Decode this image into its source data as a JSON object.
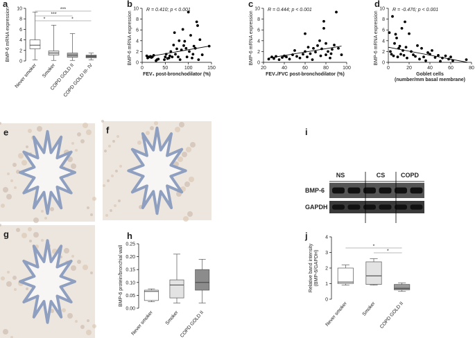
{
  "chart_data": [
    {
      "type": "box",
      "panel": "a",
      "ylabel": "BMP-6 mRNA expression",
      "categories": [
        "Never smoker",
        "Smoker",
        "COPD GOLD II",
        "COPD GOLD III- IV"
      ],
      "boxes": [
        {
          "min": 0.2,
          "q1": 2.3,
          "median": 3.0,
          "q3": 4.0,
          "max": 9.3
        },
        {
          "min": 0.1,
          "q1": 1.1,
          "median": 1.5,
          "q3": 1.9,
          "max": 6.8
        },
        {
          "min": 0.1,
          "q1": 0.7,
          "median": 1.1,
          "q3": 1.5,
          "max": 5.2
        },
        {
          "min": 0.2,
          "q1": 0.6,
          "median": 0.9,
          "q3": 1.1,
          "max": 1.5
        }
      ],
      "colors": [
        "#ffffff",
        "#e3e3e3",
        "#b0b0b0",
        "#7a7a7a"
      ],
      "ylim": [
        0,
        10
      ],
      "yticks": [
        0,
        2,
        4,
        6,
        8,
        10
      ],
      "annotations": [
        {
          "text": "***",
          "from": 0,
          "to": 3
        },
        {
          "text": "***",
          "from": 0,
          "to": 2
        },
        {
          "text": "*",
          "from": 0,
          "to": 1
        },
        {
          "text": "*",
          "from": 1,
          "to": 3
        }
      ]
    },
    {
      "type": "scatter",
      "panel": "b",
      "annotation": "R = 0.410; p < 0.001",
      "ylabel": "BMP-6 mRNA expression",
      "xlabel": "FEV₁ post-bronchodilator (%)",
      "color": "#000000",
      "x": [
        10,
        12,
        15,
        18,
        20,
        22,
        25,
        30,
        32,
        35,
        48,
        50,
        52,
        55,
        58,
        60,
        62,
        65,
        68,
        70,
        72,
        75,
        78,
        80,
        82,
        85,
        88,
        90,
        92,
        95,
        97,
        100,
        102,
        105,
        108,
        110,
        112,
        115,
        118,
        120,
        122,
        125,
        130,
        145
      ],
      "values": [
        1.2,
        0.8,
        1.0,
        1.1,
        0.9,
        1.0,
        1.3,
        0.3,
        0.5,
        0.6,
        0.5,
        1.0,
        1.5,
        0.7,
        0.8,
        1.2,
        2.0,
        1.0,
        3.2,
        5.5,
        1.5,
        2.5,
        1.0,
        4.0,
        0.5,
        2.3,
        6.1,
        3.1,
        3.9,
        2.6,
        1.0,
        9.3,
        2.0,
        5.0,
        0.8,
        1.5,
        3.0,
        2.6,
        7.5,
        6.8,
        0.5,
        4.2,
        1.4,
        3.0
      ],
      "trend": {
        "x": [
          10,
          145
        ],
        "values": [
          1.0,
          3.0
        ]
      },
      "xlim": [
        0,
        150
      ],
      "xticks": [
        0,
        50,
        100,
        150
      ],
      "ylim": [
        0,
        10
      ],
      "yticks": [
        0,
        2,
        4,
        6,
        8,
        10
      ]
    },
    {
      "type": "scatter",
      "panel": "c",
      "annotation": "R = 0.444; p < 0.001",
      "ylabel": "BMP-6 mRNA expression",
      "xlabel": "FEV₁/FVC post-bronchodilator (%)",
      "color": "#000000",
      "x": [
        25,
        28,
        30,
        32,
        35,
        38,
        40,
        42,
        45,
        48,
        50,
        52,
        55,
        58,
        60,
        60,
        62,
        63,
        65,
        67,
        68,
        70,
        72,
        74,
        75,
        76,
        78,
        78,
        80,
        80,
        82,
        84,
        85,
        86,
        88,
        90,
        92,
        95
      ],
      "values": [
        0.6,
        1.0,
        0.7,
        1.1,
        0.5,
        0.9,
        1.2,
        1.0,
        0.6,
        1.4,
        2.2,
        1.1,
        0.8,
        1.5,
        2.0,
        5.3,
        1.0,
        2.8,
        1.6,
        0.5,
        2.6,
        1.9,
        3.1,
        4.0,
        1.2,
        2.5,
        6.3,
        7.6,
        1.4,
        3.5,
        2.0,
        0.8,
        1.6,
        2.4,
        3.2,
        9.3,
        2.6,
        1.4
      ],
      "trend": {
        "x": [
          25,
          95
        ],
        "values": [
          0.8,
          3.0
        ]
      },
      "xlim": [
        20,
        100
      ],
      "xticks": [
        20,
        40,
        60,
        80,
        100
      ],
      "ylim": [
        0,
        10
      ],
      "yticks": [
        0,
        2,
        4,
        6,
        8,
        10
      ]
    },
    {
      "type": "scatter",
      "panel": "d",
      "annotation": "R = -0.476; p < 0.001",
      "ylabel": "BMP-6 mRNA expression",
      "xlabel": [
        "Goblet cells",
        "(number/mm basal membrane)"
      ],
      "color": "#000000",
      "x": [
        1,
        2,
        3,
        4,
        5,
        6,
        7,
        8,
        9,
        10,
        11,
        12,
        13,
        14,
        15,
        16,
        17,
        18,
        20,
        22,
        24,
        26,
        28,
        30,
        32,
        34,
        36,
        38,
        40,
        42,
        45,
        48,
        50,
        52,
        55,
        58,
        60,
        62,
        75
      ],
      "values": [
        5.5,
        2.0,
        1.5,
        8.5,
        1.2,
        3.5,
        5.2,
        4.5,
        1.0,
        2.6,
        3.0,
        1.5,
        6.3,
        2.2,
        1.3,
        7.5,
        2.8,
        0.8,
        5.3,
        2.0,
        1.4,
        1.1,
        3.1,
        0.6,
        2.6,
        1.0,
        0.3,
        1.8,
        1.5,
        2.2,
        0.9,
        1.3,
        0.2,
        0.8,
        1.2,
        0.6,
        1.0,
        0.3,
        0.5
      ],
      "trend": {
        "x": [
          0,
          76
        ],
        "values": [
          2.8,
          0.0
        ]
      },
      "xlim": [
        0,
        80
      ],
      "xticks": [
        0,
        20,
        40,
        60,
        80
      ],
      "ylim": [
        0,
        10
      ],
      "yticks": [
        0,
        2,
        4,
        6,
        8,
        10
      ]
    },
    {
      "type": "box",
      "panel": "h",
      "ylabel": "BMP-6 protein/bronchial wall",
      "categories": [
        "Never smoker",
        "Smoker",
        "COPD GOLD II"
      ],
      "boxes": [
        {
          "min": 0.025,
          "q1": 0.03,
          "median": 0.065,
          "q3": 0.07,
          "max": 0.075
        },
        {
          "min": 0.02,
          "q1": 0.04,
          "median": 0.09,
          "q3": 0.11,
          "max": 0.21
        },
        {
          "min": 0.02,
          "q1": 0.07,
          "median": 0.1,
          "q3": 0.15,
          "max": 0.19
        }
      ],
      "colors": [
        "#ffffff",
        "#e3e3e3",
        "#8c8c8c"
      ],
      "ylim": [
        0,
        0.25
      ],
      "yticks": [
        {
          "value": 0,
          "label": "0.00"
        },
        {
          "value": 0.05,
          "label": "0.05"
        },
        {
          "value": 0.1,
          "label": "0.10"
        },
        {
          "value": 0.15,
          "label": "0.15"
        },
        {
          "value": 0.2,
          "label": "0.20"
        },
        {
          "value": 0.25,
          "label": "0.25"
        }
      ],
      "annotations": []
    },
    {
      "type": "box",
      "panel": "j",
      "ylabel": [
        "Relative band intensity",
        "(BMP-6/GAPDH)"
      ],
      "categories": [
        "Never smoker",
        "Smoker",
        "COPD GOLD II"
      ],
      "boxes": [
        {
          "min": 0.9,
          "q1": 1.0,
          "median": 1.1,
          "q3": 2.0,
          "max": 2.2
        },
        {
          "min": 0.9,
          "q1": 0.95,
          "median": 1.5,
          "q3": 2.4,
          "max": 2.6
        },
        {
          "min": 0.5,
          "q1": 0.6,
          "median": 0.7,
          "q3": 0.95,
          "max": 1.05
        }
      ],
      "colors": [
        "#ffffff",
        "#e3e3e3",
        "#9a9a9a"
      ],
      "ylim": [
        0,
        4
      ],
      "yticks": [
        0,
        1,
        2,
        3,
        4
      ],
      "annotations": [
        {
          "text": "*",
          "from": 0,
          "to": 2
        },
        {
          "text": "*",
          "from": 1,
          "to": 2
        }
      ]
    }
  ],
  "images": [
    {
      "panel": "e"
    },
    {
      "panel": "f"
    },
    {
      "panel": "g"
    }
  ],
  "blot": {
    "panel": "i",
    "groups": [
      "NS",
      "CS",
      "COPD"
    ],
    "rows": [
      "BMP-6",
      "GAPDH"
    ]
  }
}
